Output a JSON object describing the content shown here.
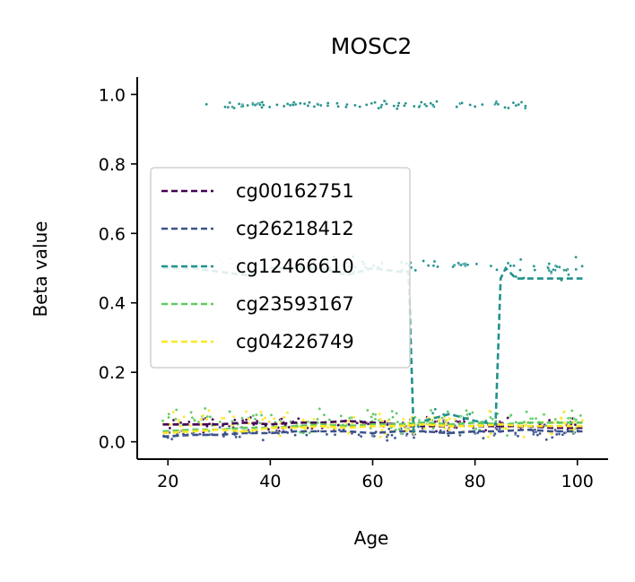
{
  "chart_data": {
    "type": "scatter",
    "title": "MOSC2",
    "xlabel": "Age",
    "ylabel": "Beta value",
    "xlim": [
      14,
      106
    ],
    "ylim": [
      -0.05,
      1.05
    ],
    "xticks": [
      "20",
      "40",
      "60",
      "80",
      "100"
    ],
    "xtick_values": [
      20,
      40,
      60,
      80,
      100
    ],
    "yticks": [
      "0.0",
      "0.2",
      "0.4",
      "0.6",
      "0.8",
      "1.0"
    ],
    "ytick_values": [
      0,
      0.2,
      0.4,
      0.6,
      0.8,
      1.0
    ],
    "legend_position": "center-left",
    "grid": false,
    "series": [
      {
        "name": "cg00162751",
        "color": "#440154",
        "trend_x": [
          19,
          25,
          30,
          35,
          40,
          45,
          50,
          55,
          60,
          65,
          70,
          75,
          80,
          85,
          90,
          95,
          101
        ],
        "trend_y": [
          0.05,
          0.05,
          0.05,
          0.055,
          0.05,
          0.055,
          0.055,
          0.06,
          0.055,
          0.05,
          0.045,
          0.045,
          0.045,
          0.045,
          0.045,
          0.04,
          0.04
        ],
        "scatter_center": 0.05,
        "scatter_spread": 0.03,
        "scatter_count": 120
      },
      {
        "name": "cg26218412",
        "color": "#3b528b",
        "trend_x": [
          19,
          25,
          30,
          35,
          40,
          45,
          50,
          55,
          60,
          65,
          70,
          75,
          80,
          85,
          90,
          95,
          101
        ],
        "trend_y": [
          0.015,
          0.02,
          0.02,
          0.025,
          0.025,
          0.03,
          0.03,
          0.03,
          0.025,
          0.03,
          0.03,
          0.025,
          0.03,
          0.03,
          0.035,
          0.03,
          0.03
        ],
        "scatter_center": 0.025,
        "scatter_spread": 0.025,
        "scatter_count": 120
      },
      {
        "name": "cg12466610",
        "color": "#21918c",
        "trend_x": [
          19,
          25,
          30,
          35,
          40,
          45,
          50,
          55,
          60,
          65,
          67,
          68,
          70,
          75,
          80,
          84,
          85,
          86,
          88,
          90,
          95,
          101
        ],
        "trend_y": [
          0.5,
          0.5,
          0.49,
          0.48,
          0.5,
          0.5,
          0.5,
          0.48,
          0.5,
          0.49,
          0.49,
          0.03,
          0.06,
          0.08,
          0.06,
          0.05,
          0.47,
          0.5,
          0.47,
          0.47,
          0.47,
          0.47
        ],
        "scatter_center": 0.5,
        "scatter_spread": 0.05,
        "scatter_count": 140
      },
      {
        "name": "cg23593167",
        "color": "#5ec962",
        "trend_x": [
          19,
          25,
          30,
          35,
          40,
          45,
          50,
          55,
          60,
          65,
          70,
          75,
          80,
          85,
          90,
          95,
          101
        ],
        "trend_y": [
          0.03,
          0.035,
          0.035,
          0.04,
          0.04,
          0.045,
          0.05,
          0.045,
          0.05,
          0.05,
          0.055,
          0.05,
          0.055,
          0.05,
          0.055,
          0.055,
          0.055
        ],
        "scatter_center": 0.06,
        "scatter_spread": 0.05,
        "scatter_count": 140
      },
      {
        "name": "cg04226749",
        "color": "#fde725",
        "trend_x": [
          19,
          25,
          30,
          35,
          40,
          45,
          50,
          55,
          60,
          65,
          70,
          75,
          80,
          85,
          90,
          95,
          101
        ],
        "trend_y": [
          0.025,
          0.03,
          0.035,
          0.03,
          0.04,
          0.04,
          0.045,
          0.04,
          0.045,
          0.045,
          0.05,
          0.045,
          0.045,
          0.05,
          0.045,
          0.045,
          0.045
        ],
        "scatter_center": 0.05,
        "scatter_spread": 0.05,
        "scatter_count": 140
      }
    ],
    "outlier_cluster": {
      "series": "cg12466610",
      "y_center": 0.97,
      "y_spread": 0.015,
      "x_range": [
        26,
        90
      ],
      "count": 90
    }
  }
}
